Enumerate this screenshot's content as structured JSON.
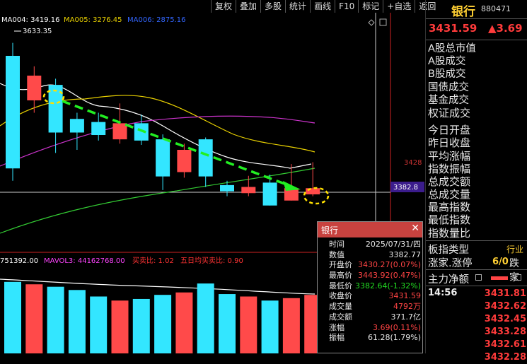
{
  "toolbar": {
    "items": [
      "复权",
      "叠加",
      "多股",
      "统计",
      "画线",
      "F10",
      "标记",
      "+自选",
      "返回"
    ]
  },
  "ma_legend": {
    "ma1_label": "MA004: 3419.16",
    "ma2_label": "MA005: 3276.45",
    "ma3_label": "MA006: 2875.16",
    "high_label": "3633.35"
  },
  "price_axis": {
    "mid_label": "3428",
    "cursor_label": "3382.8"
  },
  "volume_legend": {
    "vol_label": "751392.00",
    "mavol_label": "MAVOL3: 44162768.00",
    "buysell_label": "买卖比: 1.02",
    "fiveday_label": "五日均买卖比: 0.90"
  },
  "colors": {
    "up": "#ff4a4a",
    "down": "#33e6ff",
    "ma1": "#ffffff",
    "ma2": "#e8d000",
    "ma3": "#cc33cc",
    "ma4": "#33cc33",
    "arrow": "#22ee22",
    "circle": "#ffe000",
    "axis": "#cc2222",
    "accent": "#ffcf33"
  },
  "candles": [
    {
      "o": 3430,
      "c": 3612,
      "h": 3633,
      "l": 3410,
      "dir": "down"
    },
    {
      "o": 3580,
      "c": 3540,
      "h": 3595,
      "l": 3520,
      "dir": "up"
    },
    {
      "o": 3565,
      "c": 3488,
      "h": 3575,
      "l": 3455,
      "dir": "down"
    },
    {
      "o": 3510,
      "c": 3488,
      "h": 3520,
      "l": 3460,
      "dir": "down"
    },
    {
      "o": 3505,
      "c": 3484,
      "h": 3520,
      "l": 3475,
      "dir": "down"
    },
    {
      "o": 3503,
      "c": 3477,
      "h": 3535,
      "l": 3470,
      "dir": "up"
    },
    {
      "o": 3475,
      "c": 3503,
      "h": 3517,
      "l": 3468,
      "dir": "down"
    },
    {
      "o": 3477,
      "c": 3417,
      "h": 3485,
      "l": 3395,
      "dir": "down"
    },
    {
      "o": 3460,
      "c": 3424,
      "h": 3470,
      "l": 3415,
      "dir": "up"
    },
    {
      "o": 3417,
      "c": 3477,
      "h": 3480,
      "l": 3400,
      "dir": "down"
    },
    {
      "o": 3403,
      "c": 3393,
      "h": 3410,
      "l": 3385,
      "dir": "down"
    },
    {
      "o": 3400,
      "c": 3390,
      "h": 3418,
      "l": 3385,
      "dir": "up"
    },
    {
      "o": 3370,
      "c": 3407,
      "h": 3420,
      "l": 3370,
      "dir": "down"
    },
    {
      "o": 3378,
      "c": 3398,
      "h": 3437,
      "l": 3378,
      "dir": "up"
    },
    {
      "o": 3388,
      "c": 3398,
      "h": 3440,
      "l": 3385,
      "dir": "up"
    }
  ],
  "volumes": [
    {
      "v": 0.88,
      "dir": "down"
    },
    {
      "v": 0.85,
      "dir": "up"
    },
    {
      "v": 0.82,
      "dir": "down"
    },
    {
      "v": 0.78,
      "dir": "down"
    },
    {
      "v": 0.7,
      "dir": "down"
    },
    {
      "v": 0.65,
      "dir": "up"
    },
    {
      "v": 0.67,
      "dir": "down"
    },
    {
      "v": 0.72,
      "dir": "down"
    },
    {
      "v": 0.75,
      "dir": "up"
    },
    {
      "v": 0.86,
      "dir": "down"
    },
    {
      "v": 0.73,
      "dir": "down"
    },
    {
      "v": 0.7,
      "dir": "up"
    },
    {
      "v": 0.65,
      "dir": "down"
    },
    {
      "v": 0.68,
      "dir": "up"
    },
    {
      "v": 0.72,
      "dir": "up"
    }
  ],
  "panel": {
    "name": "银行",
    "code": "880471",
    "price": "3431.59",
    "change": "▲3.69",
    "items": [
      "A股总市值",
      "A股成交",
      "B股成交",
      "国债成交",
      "基金成交",
      "权证成交",
      "今日开盘",
      "昨日收盘",
      "平均涨幅",
      "指数振幅",
      "总成交额",
      "总成交量",
      "最高指数",
      "最低指数",
      "指数量比"
    ],
    "board_type_label": "板指类型",
    "board_type_value": "行业",
    "zd_label": "涨家.涨停",
    "zd_value": "6/0",
    "zd_value2": "跌家",
    "zl_label": "主力净额",
    "time": "14:56",
    "ticks": [
      "3431.81",
      "3432.62",
      "3432.45",
      "3433.28",
      "3432.61",
      "3432.28"
    ]
  },
  "popup": {
    "title": "银行",
    "close": "✕",
    "rows": [
      {
        "k": "时间",
        "v": "2025/07/31/四",
        "c": "white"
      },
      {
        "k": "数值",
        "v": "3382.77",
        "c": "white"
      },
      {
        "k": "开盘价",
        "v": "3430.27(0.07%)",
        "c": "red"
      },
      {
        "k": "最高价",
        "v": "3443.92(0.47%)",
        "c": "red"
      },
      {
        "k": "最低价",
        "v": "3382.64(-1.32%)",
        "c": "green"
      },
      {
        "k": "收盘价",
        "v": "3431.59",
        "c": "red"
      },
      {
        "k": "成交量",
        "v": "4792万",
        "c": "red"
      },
      {
        "k": "成交额",
        "v": "371.7亿",
        "c": "white"
      },
      {
        "k": "涨幅",
        "v": "3.69(0.11%)",
        "c": "red"
      },
      {
        "k": "振幅",
        "v": "61.28(1.79%)",
        "c": "white"
      }
    ]
  }
}
